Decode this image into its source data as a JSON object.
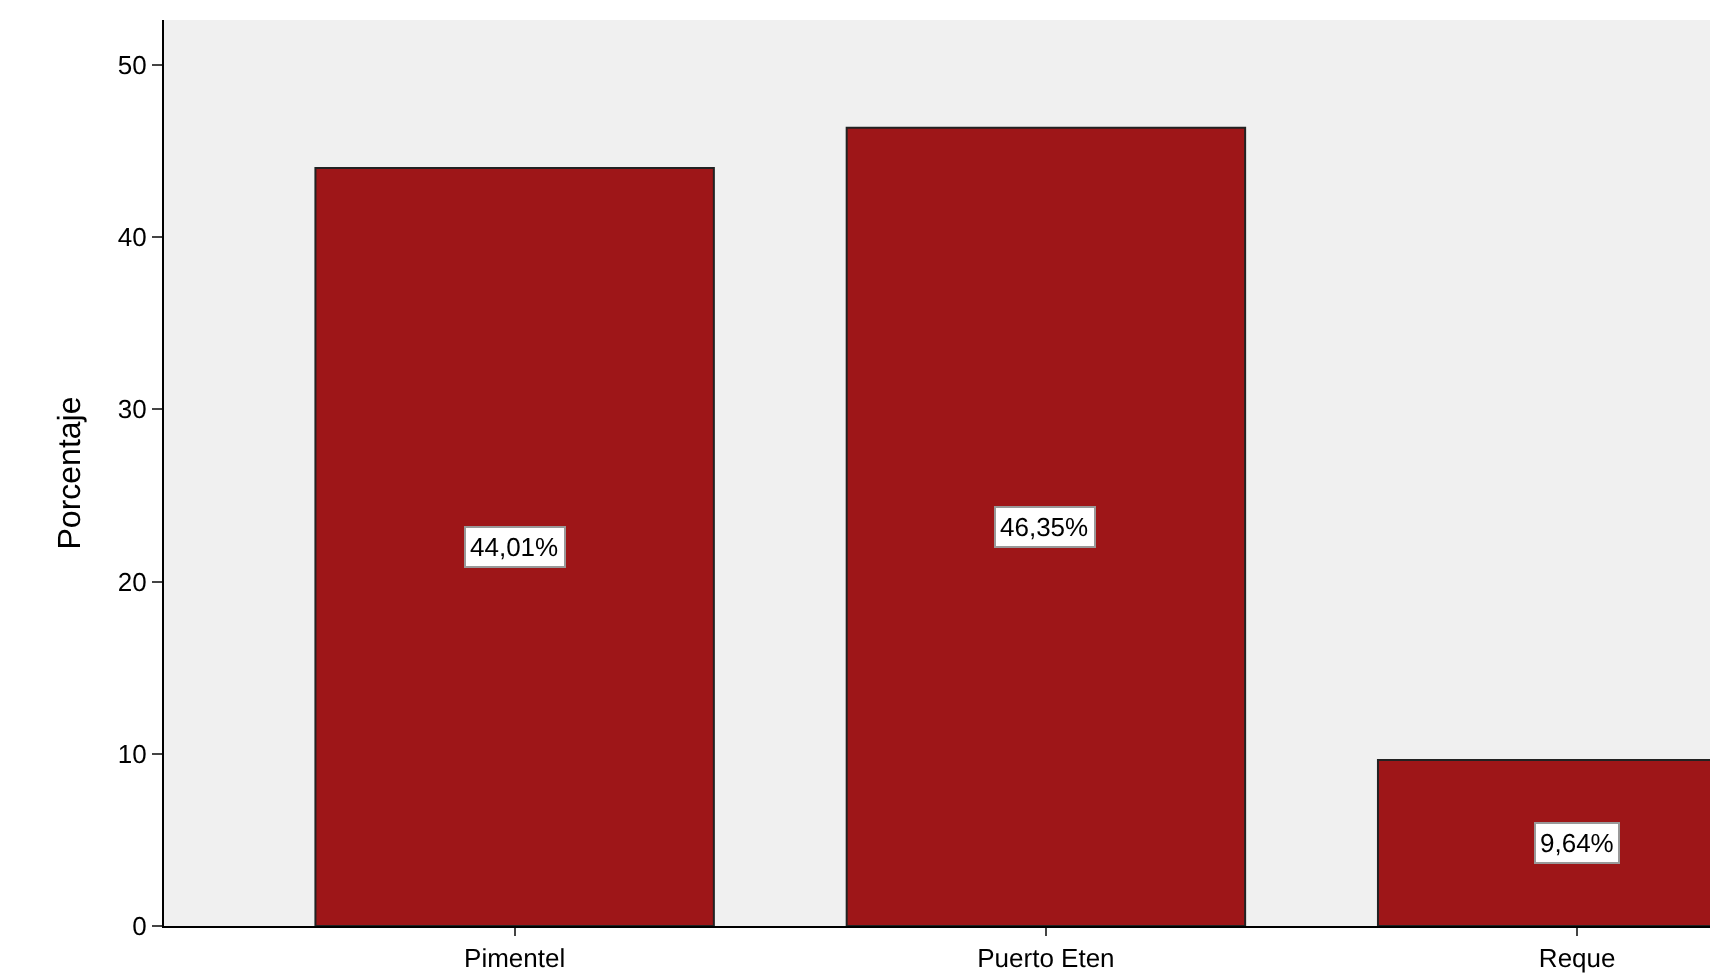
{
  "chart_data": {
    "type": "bar",
    "ylabel": "Porcentaje",
    "categories": [
      "Pimentel",
      "Puerto Eten",
      "Reque"
    ],
    "values": [
      44.01,
      46.35,
      9.64
    ],
    "value_labels": [
      "44,01%",
      "46,35%",
      "9,64%"
    ],
    "color": "#9e1618",
    "ylim": [
      0,
      52.6
    ],
    "yticks": [
      0,
      10,
      20,
      30,
      40,
      50
    ],
    "grid": false
  }
}
